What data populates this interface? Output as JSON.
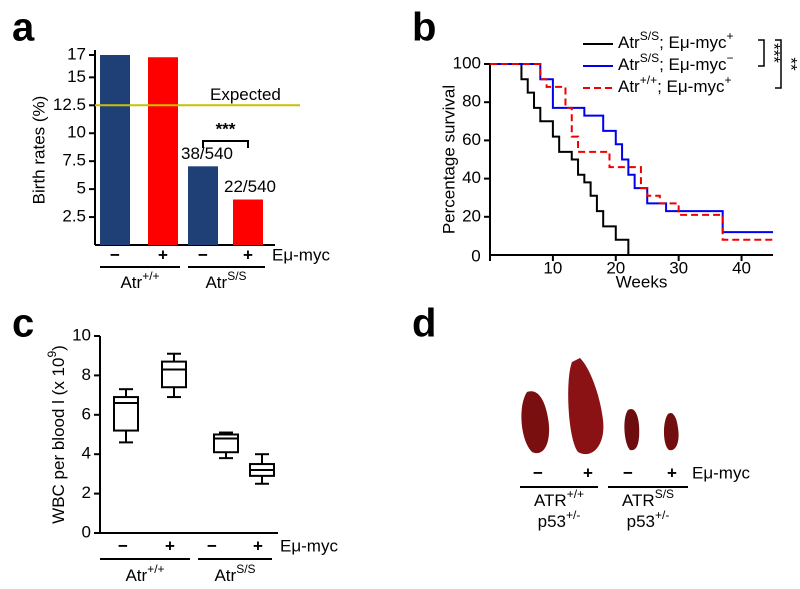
{
  "chart_data": [
    {
      "type": "bar",
      "panel": "a",
      "ylabel": "Birth rates (%)",
      "categories": [
        "−",
        "+",
        "−",
        "+"
      ],
      "values": [
        17,
        16.8,
        7.04,
        4.07
      ],
      "colors": [
        "#1f3f77",
        "#ff0000",
        "#1f3f77",
        "#ff0000"
      ],
      "ylim": [
        0,
        17
      ],
      "yticks": [
        2.5,
        5,
        7.5,
        10,
        12.5,
        15,
        17
      ],
      "reference_line": {
        "value": 12.5,
        "label": "Expected",
        "color": "#c8c000"
      },
      "annotations": [
        "38/540",
        "22/540"
      ],
      "significance": "***",
      "x_annotation": "Eμ-myc",
      "groups": [
        [
          "Atr",
          "+/+"
        ],
        [
          "Atr",
          "S/S"
        ]
      ]
    },
    {
      "type": "step",
      "panel": "b",
      "ylabel": "Percentage survival",
      "xlabel": "Weeks",
      "xlim": [
        0,
        45
      ],
      "xticks": [
        0,
        10,
        20,
        30,
        40
      ],
      "ylim": [
        0,
        100
      ],
      "yticks": [
        20,
        40,
        60,
        80,
        100
      ],
      "series": [
        {
          "name": [
            "Atr",
            "S/S",
            "; Eμ-myc",
            "+"
          ],
          "color": "#000000",
          "dashed": false,
          "x": [
            0,
            5,
            6,
            7,
            8,
            10,
            11,
            13,
            14,
            15,
            16,
            17,
            18,
            20,
            22
          ],
          "values": [
            100,
            92,
            85,
            77,
            70,
            62,
            54,
            50,
            42,
            38,
            31,
            23,
            15,
            8,
            0
          ]
        },
        {
          "name": [
            "Atr",
            "S/S",
            "; Eμ-myc",
            "−"
          ],
          "color": "#0000ee",
          "dashed": false,
          "x": [
            0,
            7,
            8,
            10,
            15,
            18,
            20,
            21,
            22,
            23,
            25,
            28,
            36,
            37,
            45
          ],
          "values": [
            100,
            100,
            92,
            77,
            73,
            65,
            58,
            50,
            42,
            35,
            27,
            23,
            23,
            12,
            12
          ]
        },
        {
          "name": [
            "Atr",
            "+/+",
            "; Eμ-myc",
            "+"
          ],
          "color": "#ee0000",
          "dashed": true,
          "x": [
            0,
            7,
            8,
            9,
            12,
            13,
            14,
            19,
            24,
            25,
            27,
            30,
            37,
            45
          ],
          "values": [
            100,
            100,
            92,
            88,
            77,
            62,
            54,
            46,
            35,
            31,
            27,
            21,
            8,
            8
          ]
        }
      ],
      "significance": [
        "***",
        "**"
      ]
    },
    {
      "type": "box",
      "panel": "c",
      "ylabel": [
        "WBC per blood l (x 10",
        "9",
        ")"
      ],
      "categories": [
        "−",
        "+",
        "−",
        "+"
      ],
      "boxes": [
        {
          "min": 4.6,
          "q1": 5.2,
          "median": 6.6,
          "q3": 6.9,
          "max": 7.3
        },
        {
          "min": 6.9,
          "q1": 7.4,
          "median": 8.3,
          "q3": 8.7,
          "max": 9.1
        },
        {
          "min": 3.8,
          "q1": 4.1,
          "median": 4.8,
          "q3": 5.0,
          "max": 5.1
        },
        {
          "min": 2.5,
          "q1": 2.9,
          "median": 3.2,
          "q3": 3.5,
          "max": 4.0
        }
      ],
      "ylim": [
        0,
        10
      ],
      "yticks": [
        0,
        2,
        4,
        6,
        8,
        10
      ],
      "x_annotation": "Eμ-myc",
      "groups": [
        [
          "Atr",
          "+/+"
        ],
        [
          "Atr",
          "S/S"
        ]
      ]
    }
  ],
  "panel_d": {
    "panel": "d",
    "categories": [
      "−",
      "+",
      "−",
      "+"
    ],
    "x_annotation": "Eμ-myc",
    "groups": [
      {
        "genotype": [
          "ATR",
          "+/+"
        ],
        "p53": [
          "p53",
          "+/-"
        ]
      },
      {
        "genotype": [
          "ATR",
          "S/S"
        ],
        "p53": [
          "p53",
          "+/-"
        ]
      }
    ]
  }
}
